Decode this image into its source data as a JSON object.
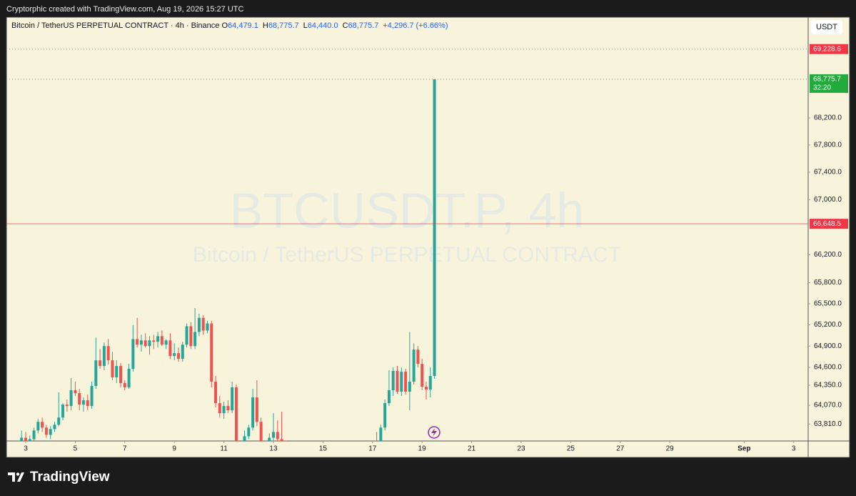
{
  "credit": "Cryptorphic created with TradingView.com, Aug 19, 2026 15:27 UTC",
  "brand": "TradingView",
  "chart_data": {
    "type": "candlestick",
    "title": "Bitcoin / TetherUS PERPETUAL CONTRACT · 4h · Binance",
    "legend_items": [
      {
        "key": "O",
        "value": "64,479.1"
      },
      {
        "key": "H",
        "value": "68,775.7"
      },
      {
        "key": "L",
        "value": "64,440.0"
      },
      {
        "key": "C",
        "value": "68,775.7"
      }
    ],
    "change": "+4,296.7 (+6.66%)",
    "watermark": {
      "symbol": "BTCUSDT.P, 4h",
      "name": "Bitcoin / TetherUS PERPETUAL CONTRACT"
    },
    "currency": "USDT",
    "up_color": "#26a69a",
    "down_color": "#ef5350",
    "log_scale": true,
    "xlim": [
      2.222,
      34.585
    ],
    "xticks": [
      3,
      5,
      7,
      9,
      11,
      13,
      15,
      17,
      19,
      21,
      23,
      25,
      27,
      29,
      {
        "value": 32,
        "label": "Sep"
      },
      {
        "value": 34,
        "label": "3"
      }
    ],
    "ylim": [
      63575,
      69711
    ],
    "yticks": [
      {
        "value": 63810,
        "label": "63,810.0"
      },
      {
        "value": 64070,
        "label": "64,070.0"
      },
      {
        "value": 64350,
        "label": "64,350.0"
      },
      {
        "value": 64600,
        "label": "64,600.0"
      },
      {
        "value": 64900,
        "label": "64,900.0"
      },
      {
        "value": 65200,
        "label": "65,200.0"
      },
      {
        "value": 65500,
        "label": "65,500.0"
      },
      {
        "value": 65800,
        "label": "65,800.0"
      },
      {
        "value": 66200,
        "label": "66,200.0"
      },
      {
        "value": 67000,
        "label": "67,000.0"
      },
      {
        "value": 67400,
        "label": "67,400.0"
      },
      {
        "value": 67800,
        "label": "67,800.0"
      },
      {
        "value": 68200,
        "label": "68,200.0"
      }
    ],
    "price_lines": [
      {
        "value": 69228.6,
        "label": "69,228.6",
        "color": "#f23645",
        "line": "dotted"
      },
      {
        "value": 68775.7,
        "label": "68,775.7",
        "countdown": "32:20",
        "color": "#22ab3c",
        "line": "dotted"
      },
      {
        "value": 66648.5,
        "label": "66,648.5",
        "color": "#f23645",
        "line": "solid"
      }
    ],
    "x": [
      2.833,
      3,
      3.167,
      3.333,
      3.5,
      3.667,
      3.833,
      4,
      4.167,
      4.333,
      4.5,
      4.667,
      4.833,
      5,
      5.167,
      5.333,
      5.5,
      5.667,
      5.833,
      6,
      6.167,
      6.333,
      6.5,
      6.667,
      6.833,
      7,
      7.167,
      7.333,
      7.5,
      7.667,
      7.833,
      8,
      8.167,
      8.333,
      8.5,
      8.667,
      8.833,
      9,
      9.167,
      9.333,
      9.5,
      9.667,
      9.833,
      10,
      10.167,
      10.333,
      10.5,
      10.667,
      10.833,
      11,
      11.167,
      11.333,
      11.5,
      11.667,
      11.833,
      12,
      12.167,
      12.333,
      12.5,
      12.667,
      12.833,
      13,
      13.167,
      13.333,
      13.5,
      17.167,
      17.333,
      17.5,
      17.667,
      17.833,
      18,
      18.167,
      18.333,
      18.5,
      18.667,
      18.833,
      19,
      19.167,
      19.333,
      19.5
    ],
    "ohlc": [
      [
        63560,
        63720,
        63450,
        63620
      ],
      [
        63620,
        63700,
        63500,
        63540
      ],
      [
        63540,
        63650,
        63480,
        63600
      ],
      [
        63600,
        63760,
        63550,
        63720
      ],
      [
        63720,
        63880,
        63680,
        63840
      ],
      [
        63840,
        63900,
        63700,
        63760
      ],
      [
        63760,
        63800,
        63620,
        63660
      ],
      [
        63660,
        63780,
        63600,
        63740
      ],
      [
        63740,
        63840,
        63700,
        63800
      ],
      [
        63800,
        64250,
        63780,
        63900
      ],
      [
        63900,
        64100,
        63860,
        64080
      ],
      [
        64080,
        64150,
        63980,
        64060
      ],
      [
        64060,
        64450,
        64000,
        64280
      ],
      [
        64280,
        64400,
        64200,
        64240
      ],
      [
        64240,
        64300,
        64000,
        64080
      ],
      [
        64080,
        64180,
        63980,
        64140
      ],
      [
        64140,
        64220,
        64000,
        64060
      ],
      [
        64060,
        64400,
        64020,
        64340
      ],
      [
        64340,
        65020,
        64300,
        64700
      ],
      [
        64700,
        64860,
        64580,
        64620
      ],
      [
        64620,
        64950,
        64560,
        64900
      ],
      [
        64900,
        65000,
        64640,
        64700
      ],
      [
        64700,
        64820,
        64420,
        64460
      ],
      [
        64460,
        64700,
        64380,
        64620
      ],
      [
        64620,
        64660,
        64320,
        64380
      ],
      [
        64380,
        64420,
        64280,
        64320
      ],
      [
        64320,
        64650,
        64300,
        64580
      ],
      [
        64580,
        65200,
        64540,
        65000
      ],
      [
        65000,
        65300,
        64880,
        64920
      ],
      [
        64920,
        65060,
        64820,
        64980
      ],
      [
        64980,
        65080,
        64880,
        64900
      ],
      [
        64900,
        65040,
        64780,
        64980
      ],
      [
        64980,
        65060,
        64860,
        64960
      ],
      [
        64960,
        65100,
        64880,
        65040
      ],
      [
        65040,
        65120,
        64900,
        64920
      ],
      [
        64920,
        65000,
        64860,
        64980
      ],
      [
        64980,
        65080,
        64720,
        64760
      ],
      [
        64760,
        64940,
        64700,
        64800
      ],
      [
        64800,
        64880,
        64680,
        64720
      ],
      [
        64720,
        64960,
        64680,
        64920
      ],
      [
        64920,
        65220,
        64880,
        65180
      ],
      [
        65180,
        65240,
        64860,
        64900
      ],
      [
        64900,
        65440,
        64860,
        65100
      ],
      [
        65100,
        65360,
        65040,
        65300
      ],
      [
        65300,
        65340,
        65060,
        65120
      ],
      [
        65120,
        65260,
        65080,
        65220
      ],
      [
        65220,
        65260,
        64320,
        64400
      ],
      [
        64400,
        64480,
        64040,
        64100
      ],
      [
        64100,
        64200,
        63900,
        63960
      ],
      [
        63960,
        64120,
        63880,
        64060
      ],
      [
        64060,
        64140,
        63960,
        64000
      ],
      [
        64000,
        64400,
        63960,
        64320
      ],
      [
        64320,
        64360,
        63400,
        63480
      ],
      [
        63480,
        63560,
        63300,
        63380
      ],
      [
        63380,
        63720,
        63340,
        63640
      ],
      [
        63640,
        63800,
        63600,
        63760
      ],
      [
        63760,
        64300,
        63720,
        64180
      ],
      [
        64180,
        64420,
        63780,
        63840
      ],
      [
        63840,
        63900,
        63400,
        63460
      ],
      [
        63460,
        63520,
        63300,
        63360
      ],
      [
        63360,
        63680,
        63320,
        63620
      ],
      [
        63620,
        63960,
        63560,
        63700
      ],
      [
        63700,
        63860,
        63560,
        63600
      ],
      [
        63600,
        63980,
        63520,
        63560
      ],
      [
        63560,
        63580,
        63300,
        63340
      ],
      [
        63400,
        63700,
        63350,
        63560
      ],
      [
        63560,
        63800,
        63500,
        63760
      ],
      [
        63760,
        64150,
        63720,
        64100
      ],
      [
        64100,
        64560,
        64060,
        64280
      ],
      [
        64280,
        64600,
        64200,
        64550
      ],
      [
        64550,
        64620,
        64230,
        64260
      ],
      [
        64260,
        64600,
        64200,
        64540
      ],
      [
        64540,
        64580,
        64220,
        64260
      ],
      [
        64260,
        65100,
        64000,
        64400
      ],
      [
        64400,
        64940,
        64360,
        64850
      ],
      [
        64850,
        64900,
        64600,
        64650
      ],
      [
        64650,
        64720,
        64280,
        64330
      ],
      [
        64330,
        64400,
        64150,
        64290
      ],
      [
        64290,
        64600,
        64180,
        64479.1
      ],
      [
        64479.1,
        68775.7,
        64440,
        68775.7
      ]
    ]
  }
}
